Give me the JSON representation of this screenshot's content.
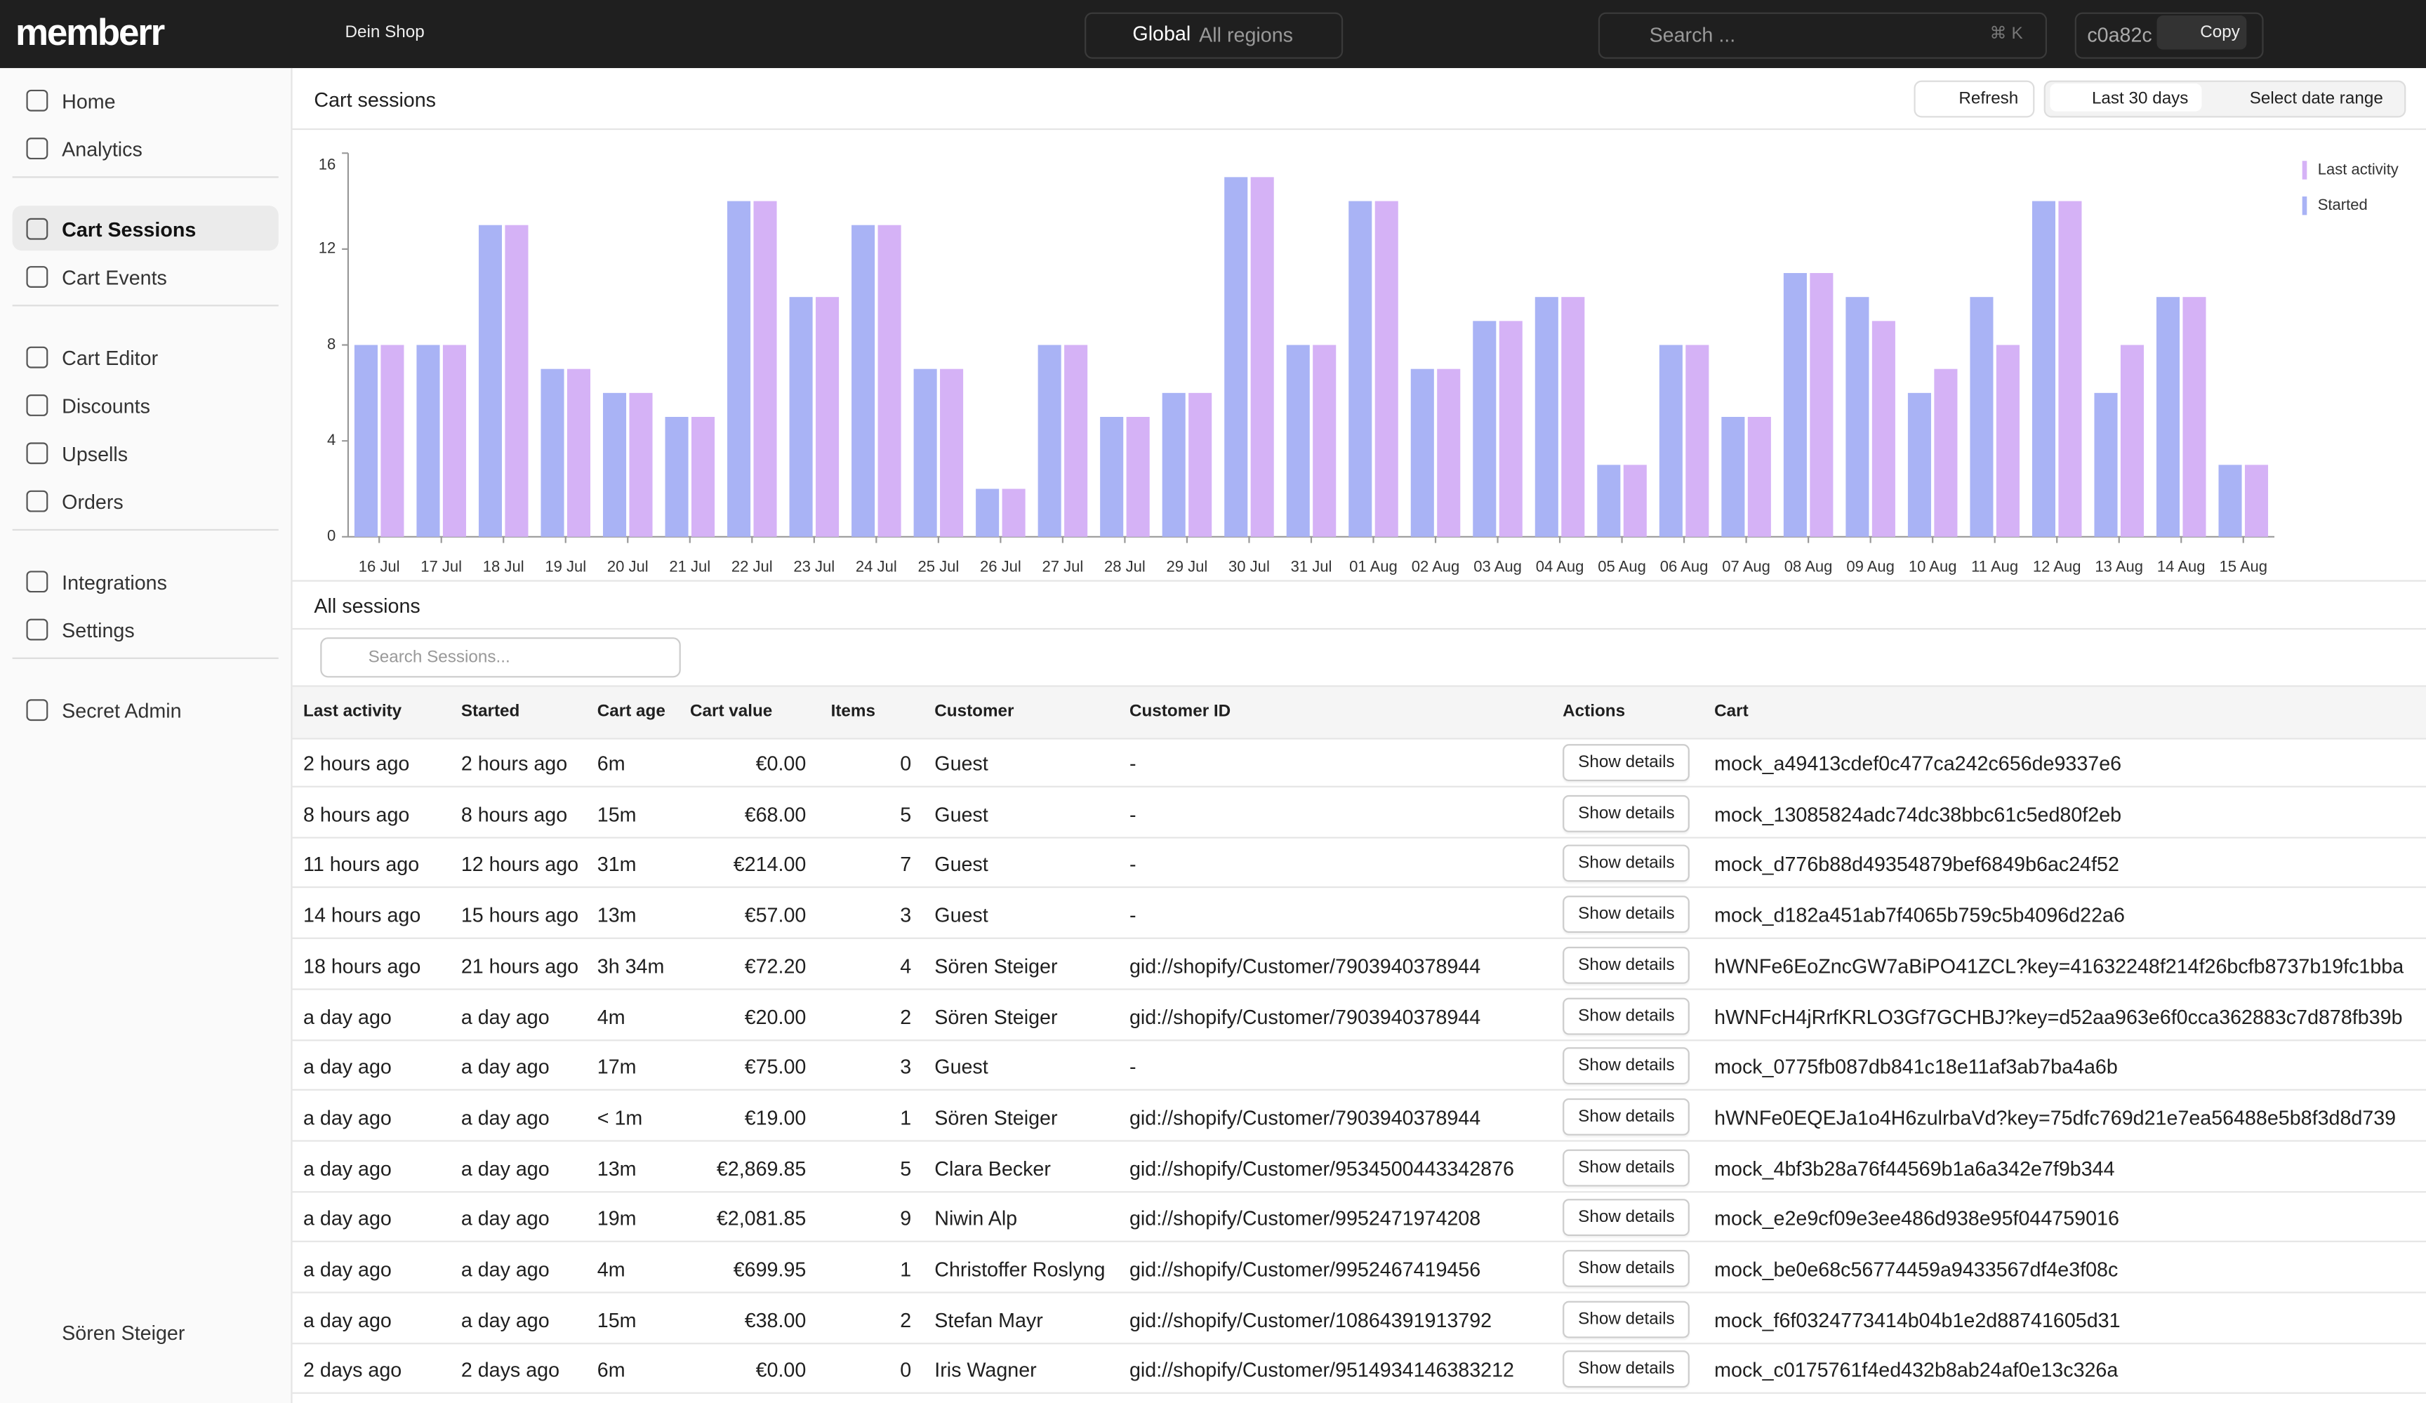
{
  "header": {
    "logo": "memberr",
    "shop": "Dein Shop",
    "region": "Global",
    "region_sub": "All regions",
    "search": "Search ...",
    "shortcut": "⌘ K",
    "id": "c0a82c",
    "copy": "Copy"
  },
  "sidebar": {
    "groups": [
      [
        "Home",
        "Analytics"
      ],
      [
        "Cart Sessions",
        "Cart Events"
      ],
      [
        "Cart Editor",
        "Discounts",
        "Upsells",
        "Orders"
      ],
      [
        "Integrations",
        "Settings"
      ],
      [
        "Secret Admin"
      ]
    ],
    "user": "Sören Steiger"
  },
  "page": {
    "title": "Cart sessions",
    "refresh": "Refresh",
    "range": "Last 30 days",
    "select_range": "Select date range"
  },
  "chart_data": {
    "type": "bar",
    "categories": [
      "16 Jul",
      "17 Jul",
      "18 Jul",
      "19 Jul",
      "20 Jul",
      "21 Jul",
      "22 Jul",
      "23 Jul",
      "24 Jul",
      "25 Jul",
      "26 Jul",
      "27 Jul",
      "28 Jul",
      "29 Jul",
      "30 Jul",
      "31 Jul",
      "01 Aug",
      "02 Aug",
      "03 Aug",
      "04 Aug",
      "05 Aug",
      "06 Aug",
      "07 Aug",
      "08 Aug",
      "09 Aug",
      "10 Aug",
      "11 Aug",
      "12 Aug",
      "13 Aug",
      "14 Aug",
      "15 Aug"
    ],
    "series": [
      {
        "name": "Last activity",
        "color": "#d5b2f6",
        "values": [
          8,
          8,
          13,
          7,
          6,
          5,
          14,
          10,
          13,
          7,
          2,
          8,
          5,
          6,
          15,
          8,
          14,
          7,
          9,
          10,
          3,
          8,
          5,
          11,
          9,
          7,
          8,
          14,
          8,
          10,
          3
        ]
      },
      {
        "name": "Started",
        "color": "#a9b3f5",
        "values": [
          8,
          8,
          13,
          7,
          6,
          5,
          14,
          10,
          13,
          7,
          2,
          8,
          5,
          6,
          15,
          8,
          14,
          7,
          9,
          10,
          3,
          8,
          5,
          11,
          10,
          6,
          10,
          14,
          6,
          10,
          3
        ]
      }
    ],
    "ylim": [
      0,
      16
    ],
    "yticks": [
      0,
      4,
      8,
      12,
      16
    ],
    "legend": "top-right"
  },
  "sessions": {
    "title": "All sessions",
    "search_placeholder": "Search Sessions...",
    "columns": [
      "Last activity",
      "Started",
      "Cart age",
      "Cart value",
      "Items",
      "Customer",
      "Customer ID",
      "Actions",
      "Cart"
    ],
    "rows": [
      [
        "2 hours ago",
        "2 hours ago",
        "6m",
        "€0.00",
        "0",
        "Guest",
        "-",
        "Show details",
        "mock_a49413cdef0c477ca242c656de9337e6"
      ],
      [
        "8 hours ago",
        "8 hours ago",
        "15m",
        "€68.00",
        "5",
        "Guest",
        "-",
        "Show details",
        "mock_13085824adc74dc38bbc61c5ed80f2eb"
      ],
      [
        "11 hours ago",
        "12 hours ago",
        "31m",
        "€214.00",
        "7",
        "Guest",
        "-",
        "Show details",
        "mock_d776b88d49354879bef6849b6ac24f52"
      ],
      [
        "14 hours ago",
        "15 hours ago",
        "13m",
        "€57.00",
        "3",
        "Guest",
        "-",
        "Show details",
        "mock_d182a451ab7f4065b759c5b4096d22a6"
      ],
      [
        "18 hours ago",
        "21 hours ago",
        "3h 34m",
        "€72.20",
        "4",
        "Sören Steiger",
        "gid://shopify/Customer/7903940378944",
        "Show details",
        "hWNFe6EoZncGW7aBiPO41ZCL?key=41632248f214f26bcfb8737b19fc1bba"
      ],
      [
        "a day ago",
        "a day ago",
        "4m",
        "€20.00",
        "2",
        "Sören Steiger",
        "gid://shopify/Customer/7903940378944",
        "Show details",
        "hWNFcH4jRrfKRLO3Gf7GCHBJ?key=d52aa963e6f0cca362883c7d878fb39b"
      ],
      [
        "a day ago",
        "a day ago",
        "17m",
        "€75.00",
        "3",
        "Guest",
        "-",
        "Show details",
        "mock_0775fb087db841c18e11af3ab7ba4a6b"
      ],
      [
        "a day ago",
        "a day ago",
        "< 1m",
        "€19.00",
        "1",
        "Sören Steiger",
        "gid://shopify/Customer/7903940378944",
        "Show details",
        "hWNFe0EQEJa1o4H6zulrbaVd?key=75dfc769d21e7ea56488e5b8f3d8d739"
      ],
      [
        "a day ago",
        "a day ago",
        "13m",
        "€2,869.85",
        "5",
        "Clara Becker",
        "gid://shopify/Customer/9534500443342876",
        "Show details",
        "mock_4bf3b28a76f44569b1a6a342e7f9b344"
      ],
      [
        "a day ago",
        "a day ago",
        "19m",
        "€2,081.85",
        "9",
        "Niwin Alp",
        "gid://shopify/Customer/9952471974208",
        "Show details",
        "mock_e2e9cf09e3ee486d938e95f044759016"
      ],
      [
        "a day ago",
        "a day ago",
        "4m",
        "€699.95",
        "1",
        "Christoffer Roslyng",
        "gid://shopify/Customer/9952467419456",
        "Show details",
        "mock_be0e68c56774459a9433567df4e3f08c"
      ],
      [
        "a day ago",
        "a day ago",
        "15m",
        "€38.00",
        "2",
        "Stefan Mayr",
        "gid://shopify/Customer/10864391913792",
        "Show details",
        "mock_f6f0324773414b04b1e2d88741605d31"
      ],
      [
        "2 days ago",
        "2 days ago",
        "6m",
        "€0.00",
        "0",
        "Iris Wagner",
        "gid://shopify/Customer/9514934146383212",
        "Show details",
        "mock_c0175761f4ed432b8ab24af0e13c326a"
      ]
    ]
  }
}
